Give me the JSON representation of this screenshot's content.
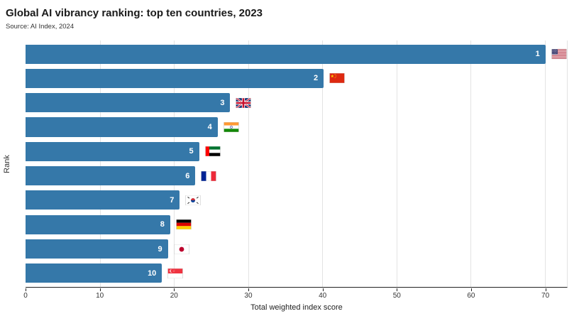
{
  "header": {
    "title": "Global AI vibrancy ranking: top ten countries, 2023",
    "source": "Source: AI Index, 2024"
  },
  "chart_data": {
    "type": "bar",
    "orientation": "horizontal",
    "title": "Global AI vibrancy ranking: top ten countries, 2023",
    "subtitle": "Source: AI Index, 2024",
    "xlabel": "Total weighted index score",
    "ylabel": "Rank",
    "xlim": [
      0,
      73
    ],
    "ticks": [
      0,
      10,
      20,
      30,
      40,
      50,
      60,
      70
    ],
    "grid": "vertical",
    "legend": "none",
    "bar_color": "#3578a9",
    "bars": [
      {
        "rank": "1",
        "country": "United States",
        "flag": "us",
        "value": 70.1
      },
      {
        "rank": "2",
        "country": "China",
        "flag": "cn",
        "value": 40.2
      },
      {
        "rank": "3",
        "country": "United Kingdom",
        "flag": "gb",
        "value": 27.6
      },
      {
        "rank": "4",
        "country": "India",
        "flag": "in",
        "value": 25.9
      },
      {
        "rank": "5",
        "country": "United Arab Emirates",
        "flag": "ae",
        "value": 23.4
      },
      {
        "rank": "6",
        "country": "France",
        "flag": "fr",
        "value": 22.9
      },
      {
        "rank": "7",
        "country": "South Korea",
        "flag": "kr",
        "value": 20.8
      },
      {
        "rank": "8",
        "country": "Germany",
        "flag": "de",
        "value": 19.5
      },
      {
        "rank": "9",
        "country": "Japan",
        "flag": "jp",
        "value": 19.2
      },
      {
        "rank": "10",
        "country": "Singapore",
        "flag": "sg",
        "value": 18.4
      }
    ]
  }
}
